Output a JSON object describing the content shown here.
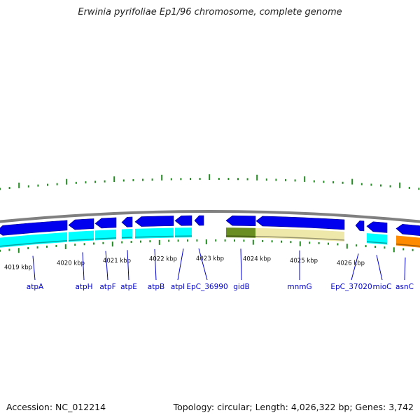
{
  "title": "Erwinia pyrifoliae Ep1/96 chromosome, complete genome",
  "footer": {
    "accession": "Accession: NC_012214",
    "topology": "Topology: circular; Length: 4,026,322 bp; Genes: 3,742"
  },
  "colors": {
    "backbone": "#808080",
    "gene": "#0000ee",
    "cds": "#00ffff",
    "rrna": "#6b8e23",
    "rrna_light": "#eee8aa",
    "trna": "#ff8c00",
    "tick": "#228b22",
    "label": "#0000cc"
  },
  "scale": {
    "labels": [
      {
        "text": "4019 kbp"
      },
      {
        "text": "4020 kbp"
      },
      {
        "text": "4021 kbp"
      },
      {
        "text": "4022 kbp"
      },
      {
        "text": "4023 kbp"
      },
      {
        "text": "4024 kbp"
      },
      {
        "text": "4025 kbp"
      },
      {
        "text": "4026 kbp"
      }
    ]
  },
  "genes": [
    {
      "name": "atpA"
    },
    {
      "name": "atpH"
    },
    {
      "name": "atpF"
    },
    {
      "name": "atpE"
    },
    {
      "name": "atpB"
    },
    {
      "name": "atpI"
    },
    {
      "name": "EpC_36990"
    },
    {
      "name": "gidB"
    },
    {
      "name": "mnmG"
    },
    {
      "name": "EpC_37020"
    },
    {
      "name": "mioC"
    },
    {
      "name": "asnC"
    }
  ]
}
